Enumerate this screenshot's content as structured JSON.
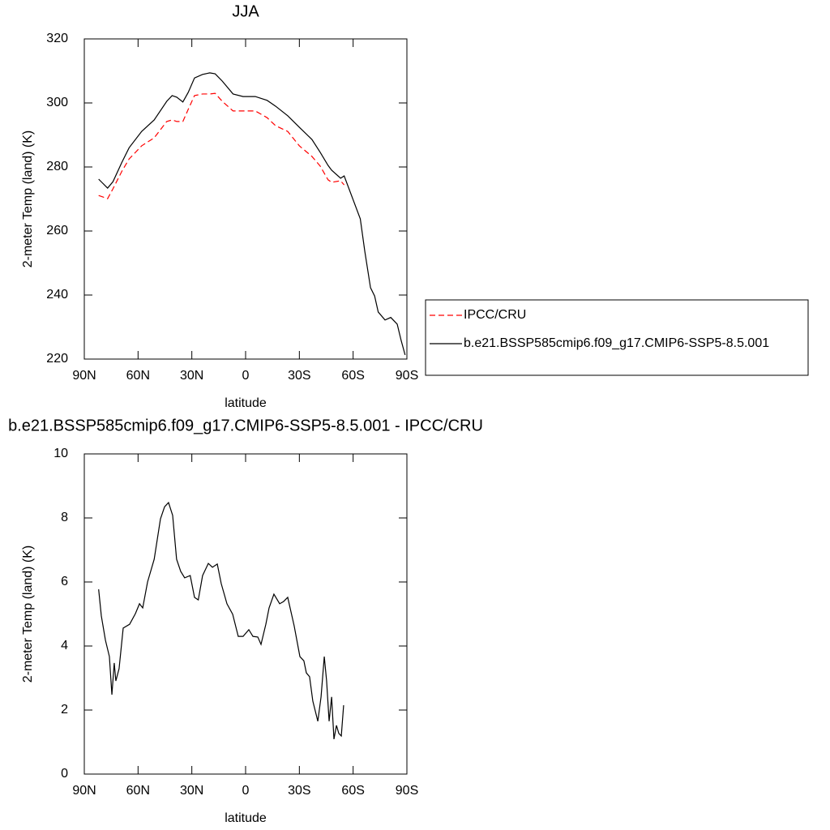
{
  "chart_data": [
    {
      "type": "line",
      "title": "JJA",
      "xlabel": "latitude",
      "ylabel": "2-meter Temp (land) (K)",
      "x": [
        82,
        77,
        74,
        69,
        65,
        58,
        51,
        44,
        41,
        38.4,
        35,
        32,
        28.5,
        24,
        20,
        17,
        13,
        7,
        1.4,
        -5.4,
        -12,
        -16.7,
        -23.5,
        -30,
        -37,
        -41.6,
        -46,
        -48,
        -53,
        -55,
        -64,
        -66.5,
        -69.7,
        -72,
        -74,
        -77.8,
        -81,
        -84.6,
        -86.8,
        -89
      ],
      "series": [
        {
          "name": "IPCC/CRU",
          "color": "#ff0000",
          "line_style": "dashed",
          "values": [
            271.1,
            270.1,
            273.2,
            278.7,
            282.5,
            286.6,
            289.1,
            294.2,
            294.7,
            294.2,
            294.2,
            298,
            302.3,
            302.8,
            302.8,
            303,
            300.5,
            297.5,
            297.5,
            297.5,
            295.4,
            292.9,
            291.1,
            286.6,
            283.3,
            280.3,
            276,
            275.2,
            275.7,
            274.4,
            null,
            null,
            null,
            null,
            null,
            null,
            null,
            null,
            null,
            null
          ]
        },
        {
          "name": "b.e21.BSSP585cmip6.f09_g17.CMIP6-SSP5-8.5.001",
          "color": "#000000",
          "line_style": "solid",
          "values": [
            276.2,
            273.4,
            275.4,
            281.5,
            286,
            291.1,
            294.7,
            300.5,
            302.3,
            301.8,
            300.3,
            303.3,
            307.8,
            308.9,
            309.4,
            309.1,
            306.8,
            302.8,
            302,
            302,
            300.8,
            299,
            296,
            292.4,
            288.6,
            284.6,
            280.5,
            279,
            276.5,
            277.2,
            263.8,
            253.7,
            242.3,
            239.7,
            234.7,
            232.2,
            233,
            230.9,
            225.8,
            221.3
          ]
        }
      ],
      "xlim": [
        90,
        -90
      ],
      "xticks": [
        {
          "value": 90,
          "label": "90N"
        },
        {
          "value": 60,
          "label": "60N"
        },
        {
          "value": 30,
          "label": "30N"
        },
        0,
        {
          "value": -30,
          "label": "30S"
        },
        {
          "value": -60,
          "label": "60S"
        },
        {
          "value": -90,
          "label": "90S"
        }
      ],
      "ylim": [
        220,
        320
      ],
      "yticks": [
        220,
        240,
        260,
        280,
        300,
        320
      ],
      "legend": "right"
    },
    {
      "type": "line",
      "title": "b.e21.BSSP585cmip6.f09_g17.CMIP6-SSP5-8.5.001 - IPCC/CRU",
      "xlabel": "latitude",
      "ylabel": "2-meter Temp (land) (K)",
      "x": [
        82,
        80.5,
        78.2,
        76,
        74.6,
        73.3,
        72.4,
        70.6,
        68.3,
        64.7,
        61.5,
        59.2,
        57.4,
        54.7,
        51,
        47.5,
        45.2,
        43,
        40.7,
        38.5,
        36.2,
        34,
        30.9,
        28.5,
        26.4,
        24,
        20.8,
        18.5,
        15.8,
        13.6,
        10.4,
        7.2,
        4.1,
        1.4,
        -1.8,
        -4.1,
        -6.8,
        -8.6,
        -11.3,
        -13.1,
        -15.8,
        -19,
        -21.2,
        -23.5,
        -27.1,
        -30.3,
        -32.5,
        -33.9,
        -35.7,
        -37.5,
        -40.3,
        -42.1,
        -43.9,
        -45.2,
        -46.6,
        -48,
        -49.3,
        -50.7,
        -52,
        -53.4,
        -54.7
      ],
      "color": "#000000",
      "values": [
        5.77,
        4.94,
        4.18,
        3.67,
        2.48,
        3.47,
        2.91,
        3.29,
        4.56,
        4.68,
        5.01,
        5.32,
        5.19,
        6,
        6.71,
        7.97,
        8.35,
        8.48,
        8.08,
        6.71,
        6.33,
        6.13,
        6.2,
        5.52,
        5.44,
        6.2,
        6.58,
        6.46,
        6.56,
        5.95,
        5.32,
        4.99,
        4.3,
        4.3,
        4.51,
        4.3,
        4.28,
        4.05,
        4.68,
        5.19,
        5.62,
        5.32,
        5.39,
        5.52,
        4.63,
        3.67,
        3.54,
        3.16,
        3.04,
        2.28,
        1.65,
        2.41,
        3.67,
        2.91,
        1.65,
        2.41,
        1.09,
        1.52,
        1.27,
        1.19,
        2.15
      ],
      "xlim": [
        90,
        -90
      ],
      "xticks": [
        {
          "value": 90,
          "label": "90N"
        },
        {
          "value": 60,
          "label": "60N"
        },
        {
          "value": 30,
          "label": "30N"
        },
        0,
        {
          "value": -30,
          "label": "30S"
        },
        {
          "value": -60,
          "label": "60S"
        },
        {
          "value": -90,
          "label": "90S"
        }
      ],
      "ylim": [
        0,
        10
      ],
      "yticks": [
        0,
        2,
        4,
        6,
        8,
        10
      ]
    }
  ]
}
